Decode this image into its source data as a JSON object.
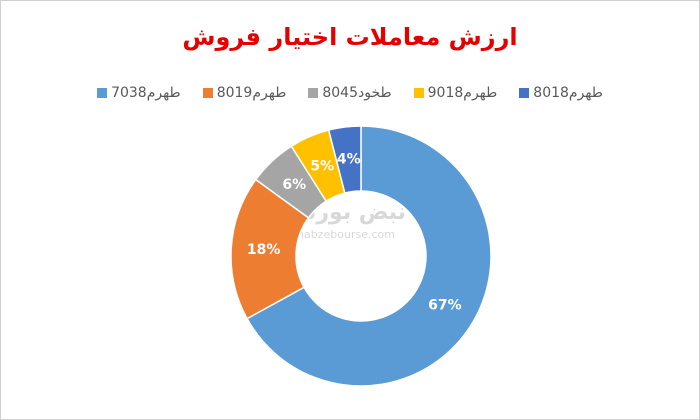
{
  "chart_data": {
    "type": "donut",
    "title": "ارزش معاملات اختیار فروش",
    "categories": [
      "طهرم7038",
      "طهرم8019",
      "طخود8045",
      "طهرم9018",
      "طهرم8018"
    ],
    "values": [
      67,
      18,
      6,
      5,
      4
    ],
    "value_labels": [
      "67%",
      "18%",
      "6%",
      "5%",
      "4%"
    ],
    "colors": [
      "#5b9bd5",
      "#ed7d31",
      "#a5a5a5",
      "#ffc000",
      "#4472c4"
    ],
    "legend": "top",
    "watermark": {
      "name": "نبض بورس",
      "url": "nabzebourse.com"
    }
  }
}
